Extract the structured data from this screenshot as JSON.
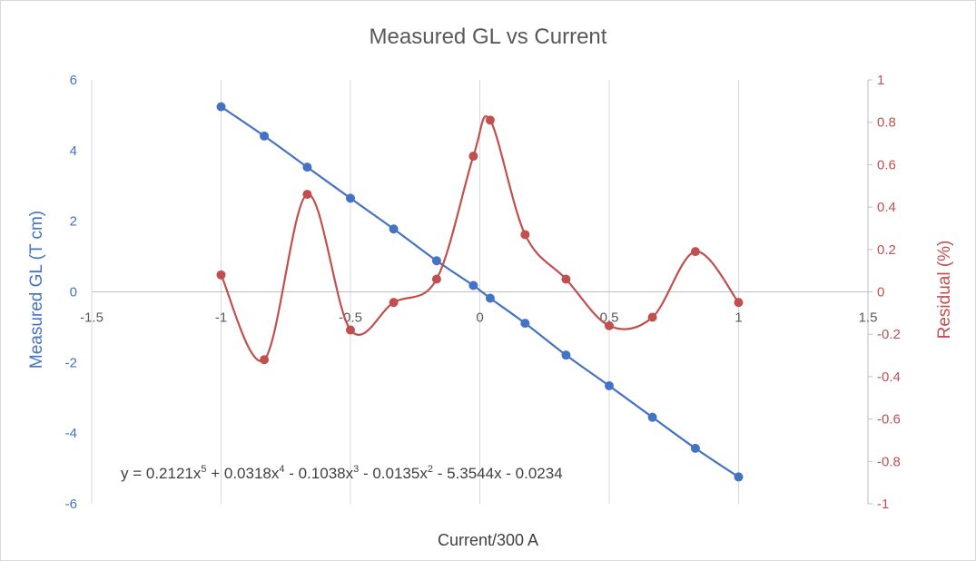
{
  "chart_data": {
    "type": "scatter",
    "title": "Measured GL vs Current",
    "xlabel": "Current/300 A",
    "ylabel_left": "Measured GL (T cm)",
    "ylabel_right": "Residual (%)",
    "xlim": [
      -1.5,
      1.5
    ],
    "ylim_left": [
      -6,
      6
    ],
    "ylim_right": [
      -1,
      1
    ],
    "x_ticks": [
      "-1.5",
      "-1",
      "-0.5",
      "0",
      "0.5",
      "1",
      "1.5"
    ],
    "y_left_ticks": [
      "6",
      "4",
      "2",
      "0",
      "-2",
      "-4",
      "-6"
    ],
    "y_right_ticks": [
      "1",
      "0.8",
      "0.6",
      "0.4",
      "0.2",
      "0",
      "-0.2",
      "-0.4",
      "-0.6",
      "-0.8",
      "-1"
    ],
    "grid": "vertical",
    "colors": {
      "measured": "#4472c4",
      "residual": "#c0504d"
    },
    "series": [
      {
        "axis": "left",
        "x": [
          -1,
          -0.833,
          -0.667,
          -0.5,
          -0.333,
          -0.167,
          -0.025,
          0.04,
          0.175,
          0.333,
          0.5,
          0.667,
          0.833,
          1
        ],
        "values": [
          5.24,
          4.41,
          3.53,
          2.65,
          1.78,
          0.88,
          0.18,
          -0.18,
          -0.89,
          -1.79,
          -2.66,
          -3.55,
          -4.43,
          -5.24
        ]
      },
      {
        "axis": "right",
        "x": [
          -1,
          -0.833,
          -0.667,
          -0.5,
          -0.333,
          -0.167,
          -0.025,
          0.04,
          0.175,
          0.333,
          0.5,
          0.667,
          0.833,
          1
        ],
        "values": [
          0.08,
          -0.32,
          0.46,
          -0.18,
          -0.05,
          0.06,
          0.64,
          0.81,
          0.27,
          0.06,
          -0.16,
          -0.12,
          0.19,
          -0.05
        ]
      }
    ],
    "annotation": {
      "prefix": "y = 0.2121x",
      "exp5": "5",
      "term4": " + 0.0318x",
      "exp4": "4",
      "term3": " - 0.1038x",
      "exp3": "3",
      "term2": " - 0.0135x",
      "exp2": "2",
      "rest": " - 5.3544x - 0.0234"
    }
  }
}
